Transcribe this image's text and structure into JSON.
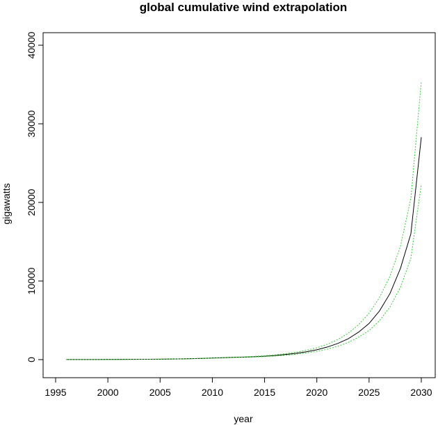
{
  "chart_data": {
    "type": "line",
    "title": "global cumulative wind extrapolation",
    "xlabel": "year",
    "ylabel": "gigawatts",
    "xlim": [
      1996,
      2030
    ],
    "ylim": [
      0,
      40000
    ],
    "x_ticks": [
      1995,
      2000,
      2005,
      2010,
      2015,
      2020,
      2025,
      2030
    ],
    "y_ticks": [
      0,
      10000,
      20000,
      30000,
      40000
    ],
    "grid": false,
    "legend": "none",
    "x": [
      1996,
      1997,
      1998,
      1999,
      2000,
      2001,
      2002,
      2003,
      2004,
      2005,
      2006,
      2007,
      2008,
      2009,
      2010,
      2011,
      2012,
      2013,
      2014,
      2015,
      2016,
      2017,
      2018,
      2019,
      2020,
      2021,
      2022,
      2023,
      2024,
      2025,
      2026,
      2027,
      2028,
      2029,
      2030
    ],
    "series": [
      {
        "color": "#000000",
        "dash": "solid",
        "values": [
          6,
          8,
          10,
          13,
          17,
          23,
          31,
          40,
          48,
          59,
          74,
          94,
          121,
          159,
          198,
          238,
          283,
          320,
          370,
          433,
          525,
          650,
          800,
          1000,
          1250,
          1600,
          2050,
          2650,
          3500,
          4600,
          6200,
          8400,
          11600,
          16000,
          28300
        ]
      },
      {
        "color": "#33cc33",
        "dash": "dotted",
        "values": [
          6,
          8,
          10,
          13,
          17,
          23,
          31,
          40,
          48,
          60,
          76,
          97,
          126,
          166,
          210,
          255,
          305,
          350,
          410,
          490,
          600,
          750,
          940,
          1190,
          1500,
          1950,
          2550,
          3350,
          4450,
          5900,
          7900,
          10600,
          14400,
          20500,
          35400
        ]
      },
      {
        "color": "#33cc33",
        "dash": "dotted",
        "values": [
          6,
          8,
          10,
          13,
          17,
          23,
          30,
          39,
          47,
          57,
          71,
          90,
          115,
          150,
          185,
          220,
          262,
          295,
          335,
          385,
          460,
          560,
          685,
          850,
          1050,
          1330,
          1700,
          2180,
          2850,
          3700,
          4950,
          6700,
          9200,
          12900,
          22300
        ]
      }
    ]
  }
}
